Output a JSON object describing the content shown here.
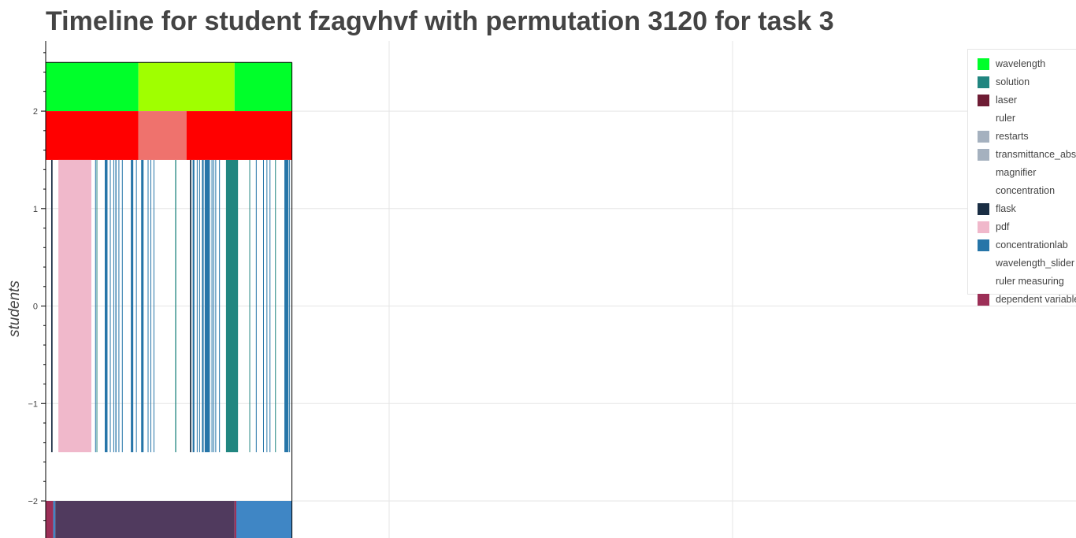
{
  "chart_data": {
    "type": "bar",
    "title": "Timeline for student fzagvhvf with permutation 3120 for task 3",
    "xlabel": "",
    "ylabel": "students",
    "x_range": [
      0,
      3000
    ],
    "ylim": [
      -2.38,
      2.72
    ],
    "y_ticks": [
      {
        "value": 2,
        "label": "2"
      },
      {
        "value": 1,
        "label": "1"
      },
      {
        "value": 0,
        "label": "0"
      },
      {
        "value": -1,
        "label": "−1"
      },
      {
        "value": -2,
        "label": "−2"
      }
    ],
    "grid": true,
    "legend_placement": "top-right",
    "colors": {
      "wavelength": "#00ff2a",
      "wavelength_alt": "#a0ff00",
      "solution": "#218680",
      "laser": "#6e1c34",
      "ruler": "#ffffff",
      "restarts": "#a5b1bf",
      "transmittance_absorbance": "#a5b1bf",
      "magnifier": "#ffffff",
      "concentration": "#ffffff",
      "flask": "#1a2e44",
      "pdf": "#f0b8cb",
      "concentrationlab": "#2675a8",
      "wavelength_slider": "#ffffff",
      "ruler_measuring": "#ffffff",
      "dependent_variable": "#9c2f57",
      "measure_red": "#ff0000",
      "measure_salmon": "#ef726d",
      "dv_purple": "#503a5e",
      "dv_blue": "#3f86c5"
    },
    "series": [
      {
        "name": "wavelength",
        "legend_color": "#00ff2a",
        "y0": 2,
        "y1": 2.5,
        "segments": [
          {
            "start": 0,
            "end": 270,
            "color": "#00ff2a"
          },
          {
            "start": 270,
            "end": 550,
            "color": "#a0ff00"
          },
          {
            "start": 550,
            "end": 717,
            "color": "#00ff2a"
          }
        ]
      },
      {
        "name": "solution",
        "legend_color": "#218680",
        "y0": -1.5,
        "y1": 1.5,
        "segments": [
          {
            "start": 148,
            "end": 150
          },
          {
            "start": 377,
            "end": 380
          },
          {
            "start": 525,
            "end": 560
          },
          {
            "start": 593,
            "end": 595
          },
          {
            "start": 668,
            "end": 670
          }
        ]
      },
      {
        "name": "laser",
        "legend_color": "#6e1c34",
        "segments": []
      },
      {
        "name": "ruler",
        "legend_color": "#ffffff",
        "segments": []
      },
      {
        "name": "restarts",
        "legend_color": "#a5b1bf",
        "segments": []
      },
      {
        "name": "transmittance_absorbance",
        "legend_color": "#a5b1bf",
        "segments": []
      },
      {
        "name": "magnifier",
        "legend_color": "#ffffff",
        "segments": []
      },
      {
        "name": "concentration",
        "legend_color": "#ffffff",
        "y0": 1.5,
        "y1": 2,
        "segments": [
          {
            "start": 0,
            "end": 270,
            "color": "#ff0000"
          },
          {
            "start": 270,
            "end": 410,
            "color": "#ef726d"
          },
          {
            "start": 410,
            "end": 717,
            "color": "#ff0000"
          }
        ]
      },
      {
        "name": "flask",
        "legend_color": "#1a2e44",
        "y0": -1.5,
        "y1": 1.5,
        "segments": [
          {
            "start": 16,
            "end": 20
          },
          {
            "start": 420,
            "end": 424
          }
        ]
      },
      {
        "name": "pdf",
        "legend_color": "#f0b8cb",
        "y0": -1.5,
        "y1": 1.5,
        "segments": [
          {
            "start": 37,
            "end": 133
          }
        ]
      },
      {
        "name": "concentrationlab",
        "legend_color": "#2675a8",
        "y0": -1.5,
        "y1": 1.5,
        "segments": [
          {
            "start": 144,
            "end": 146
          },
          {
            "start": 172,
            "end": 180
          },
          {
            "start": 187,
            "end": 189
          },
          {
            "start": 197,
            "end": 199
          },
          {
            "start": 203,
            "end": 206
          },
          {
            "start": 212,
            "end": 214
          },
          {
            "start": 222,
            "end": 224
          },
          {
            "start": 248,
            "end": 255
          },
          {
            "start": 263,
            "end": 265
          },
          {
            "start": 278,
            "end": 285
          },
          {
            "start": 297,
            "end": 299
          },
          {
            "start": 305,
            "end": 307
          },
          {
            "start": 314,
            "end": 316
          },
          {
            "start": 428,
            "end": 433
          },
          {
            "start": 440,
            "end": 442
          },
          {
            "start": 447,
            "end": 449
          },
          {
            "start": 455,
            "end": 460
          },
          {
            "start": 463,
            "end": 478
          },
          {
            "start": 483,
            "end": 485
          },
          {
            "start": 488,
            "end": 490
          },
          {
            "start": 494,
            "end": 496
          },
          {
            "start": 505,
            "end": 507
          },
          {
            "start": 612,
            "end": 614
          },
          {
            "start": 633,
            "end": 635
          },
          {
            "start": 643,
            "end": 645
          },
          {
            "start": 652,
            "end": 654
          },
          {
            "start": 695,
            "end": 707
          },
          {
            "start": 709,
            "end": 711
          }
        ]
      },
      {
        "name": "wavelength_slider",
        "legend_color": "#ffffff",
        "segments": []
      },
      {
        "name": "ruler measuring",
        "legend_color": "#ffffff",
        "segments": []
      },
      {
        "name": "dependent variable",
        "legend_color": "#9c2f57",
        "y0": -2.4,
        "y1": -2,
        "segments": [
          {
            "start": 0,
            "end": 22,
            "color": "#9c2f57"
          },
          {
            "start": 22,
            "end": 28,
            "color": "#3f86c5"
          },
          {
            "start": 28,
            "end": 550,
            "color": "#503a5e"
          },
          {
            "start": 550,
            "end": 555,
            "color": "#9c2f57"
          },
          {
            "start": 555,
            "end": 717,
            "color": "#3f86c5"
          }
        ]
      }
    ]
  }
}
